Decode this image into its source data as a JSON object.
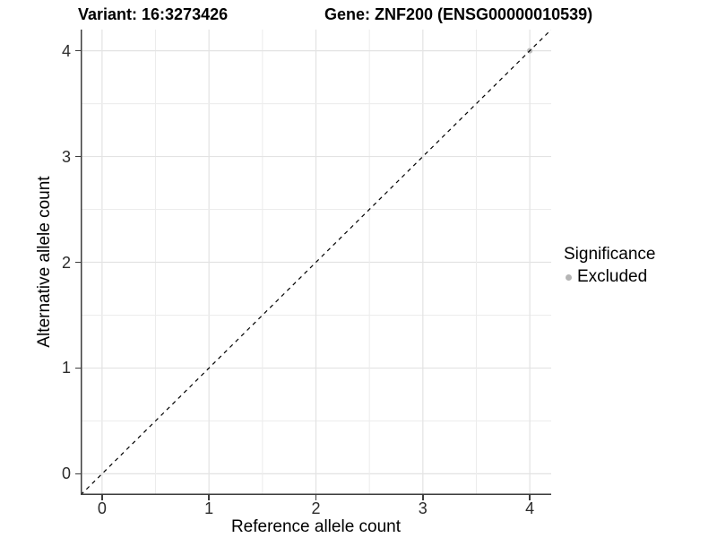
{
  "titles": {
    "variant": "Variant: 16:3273426",
    "gene": "Gene: ZNF200 (ENSG00000010539)"
  },
  "chart_data": {
    "type": "scatter",
    "title_left": "Variant: 16:3273426",
    "title_right": "Gene: ZNF200 (ENSG00000010539)",
    "xlabel": "Reference allele count",
    "ylabel": "Alternative allele count",
    "xlim": [
      -0.2,
      4.2
    ],
    "ylim": [
      -0.2,
      4.2
    ],
    "xticks": [
      0,
      1,
      2,
      3,
      4
    ],
    "yticks": [
      0,
      1,
      2,
      3,
      4
    ],
    "minor_step": 0.5,
    "grid": true,
    "identity_line": {
      "type": "abline",
      "slope": 1,
      "intercept": 0,
      "style": "dashed",
      "color": "#000000"
    },
    "series": [
      {
        "name": "Excluded",
        "color": "#bdbdbd",
        "points": [
          {
            "x": 4,
            "y": 4
          }
        ]
      }
    ],
    "legend": {
      "title": "Significance",
      "position": "right",
      "entries": [
        {
          "label": "Excluded",
          "color": "#b5b5b5"
        }
      ]
    },
    "colors": {
      "axis_line": "#3d3d3d",
      "grid_major": "#e3e3e3",
      "grid_minor": "#ececec",
      "tick_text": "#2b2b2b",
      "background": "#ffffff"
    }
  }
}
